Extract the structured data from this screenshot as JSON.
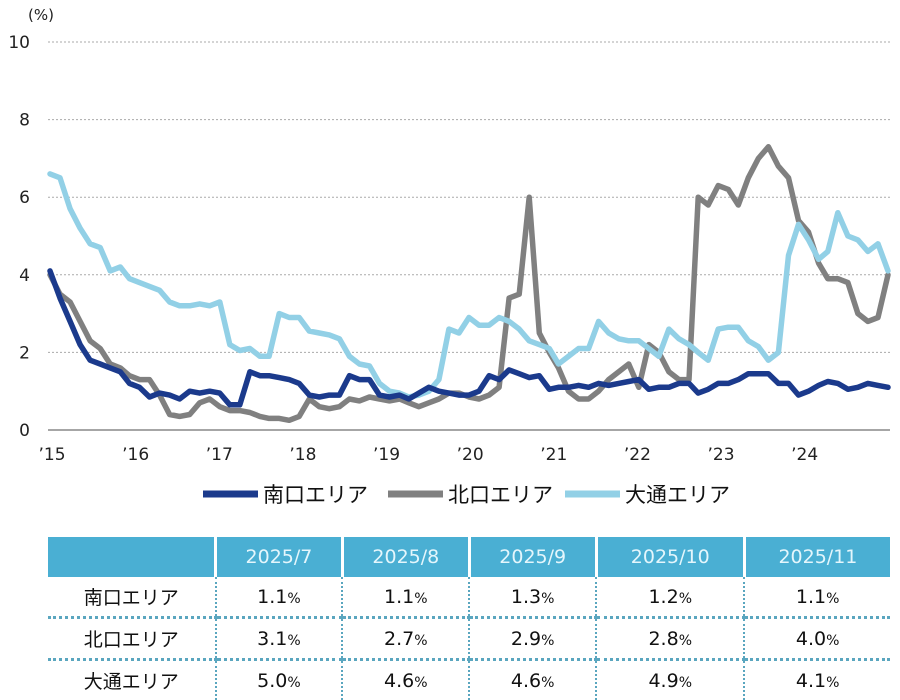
{
  "chart_data": {
    "type": "line",
    "ylabel": "(%)",
    "ylim": [
      0,
      10
    ],
    "yticks": [
      "0",
      "2",
      "4",
      "6",
      "8",
      "10"
    ],
    "grid": true,
    "legend_placement": "bottom",
    "xticks": [
      {
        "label": "’15",
        "x": 2015
      },
      {
        "label": "’16",
        "x": 2016
      },
      {
        "label": "’17",
        "x": 2017
      },
      {
        "label": "’18",
        "x": 2018
      },
      {
        "label": "’19",
        "x": 2019
      },
      {
        "label": "’20",
        "x": 2020
      },
      {
        "label": "’21",
        "x": 2021
      },
      {
        "label": "’22",
        "x": 2022
      },
      {
        "label": "’23",
        "x": 2023
      },
      {
        "label": "’24",
        "x": 2024
      }
    ],
    "x": [
      2015.0,
      2015.12,
      2015.24,
      2015.36,
      2015.48,
      2015.6,
      2015.72,
      2015.84,
      2015.95,
      2016.07,
      2016.19,
      2016.31,
      2016.43,
      2016.55,
      2016.67,
      2016.79,
      2016.91,
      2017.03,
      2017.15,
      2017.27,
      2017.39,
      2017.51,
      2017.62,
      2017.74,
      2017.86,
      2017.98,
      2018.1,
      2018.22,
      2018.34,
      2018.46,
      2018.58,
      2018.7,
      2018.82,
      2018.94,
      2019.06,
      2019.18,
      2019.29,
      2019.41,
      2019.53,
      2019.65,
      2019.77,
      2019.89,
      2020.01,
      2020.13,
      2020.25,
      2020.37,
      2020.49,
      2020.61,
      2020.73,
      2020.85,
      2020.97,
      2021.08,
      2021.2,
      2021.32,
      2021.44,
      2021.56,
      2021.68,
      2021.8,
      2021.92,
      2022.04,
      2022.16,
      2022.28,
      2022.4,
      2022.52,
      2022.64,
      2022.75,
      2022.87,
      2022.99,
      2023.11,
      2023.23,
      2023.35,
      2023.47,
      2023.59,
      2023.71,
      2023.83,
      2023.95,
      2024.07,
      2024.19,
      2024.3,
      2024.42,
      2024.54,
      2024.66,
      2024.78,
      2024.9,
      2025.02
    ],
    "series": [
      {
        "name": "南口エリア",
        "color": "#1b3a8c",
        "values": [
          4.1,
          3.4,
          2.8,
          2.2,
          1.8,
          1.7,
          1.6,
          1.5,
          1.2,
          1.1,
          0.85,
          0.95,
          0.9,
          0.8,
          1.0,
          0.95,
          1.0,
          0.95,
          0.65,
          0.65,
          1.5,
          1.4,
          1.4,
          1.35,
          1.3,
          1.2,
          0.9,
          0.85,
          0.9,
          0.9,
          1.4,
          1.3,
          1.3,
          0.9,
          0.85,
          0.9,
          0.8,
          0.95,
          1.1,
          1.0,
          0.95,
          0.9,
          0.9,
          1.0,
          1.4,
          1.3,
          1.55,
          1.45,
          1.35,
          1.4,
          1.05,
          1.1,
          1.1,
          1.15,
          1.1,
          1.2,
          1.15,
          1.2,
          1.25,
          1.3,
          1.05,
          1.1,
          1.1,
          1.2,
          1.2,
          0.95,
          1.05,
          1.2,
          1.2,
          1.3,
          1.45,
          1.45,
          1.45,
          1.2,
          1.2,
          0.9,
          1.0,
          1.15,
          1.25,
          1.2,
          1.05,
          1.1,
          1.2,
          1.15,
          1.1
        ]
      },
      {
        "name": "北口エリア",
        "color": "#808080",
        "values": [
          4.0,
          3.5,
          3.3,
          2.8,
          2.3,
          2.1,
          1.7,
          1.6,
          1.4,
          1.3,
          1.3,
          0.9,
          0.4,
          0.35,
          0.4,
          0.7,
          0.8,
          0.6,
          0.5,
          0.5,
          0.45,
          0.35,
          0.3,
          0.3,
          0.25,
          0.35,
          0.8,
          0.6,
          0.55,
          0.6,
          0.8,
          0.75,
          0.85,
          0.8,
          0.75,
          0.8,
          0.7,
          0.6,
          0.7,
          0.8,
          0.95,
          0.95,
          0.85,
          0.8,
          0.9,
          1.1,
          3.4,
          3.5,
          6.0,
          2.5,
          2.0,
          1.6,
          1.0,
          0.8,
          0.8,
          1.0,
          1.3,
          1.5,
          1.7,
          1.1,
          2.2,
          2.0,
          1.5,
          1.3,
          1.3,
          6.0,
          5.8,
          6.3,
          6.2,
          5.8,
          6.5,
          7.0,
          7.3,
          6.8,
          6.5,
          5.4,
          5.1,
          4.3,
          3.9,
          3.9,
          3.8,
          3.0,
          2.8,
          2.9,
          4.0
        ]
      },
      {
        "name": "大通エリア",
        "color": "#92d0e6",
        "values": [
          6.6,
          6.5,
          5.7,
          5.2,
          4.8,
          4.7,
          4.1,
          4.2,
          3.9,
          3.8,
          3.7,
          3.6,
          3.3,
          3.2,
          3.2,
          3.25,
          3.2,
          3.3,
          2.2,
          2.05,
          2.1,
          1.9,
          1.9,
          3.0,
          2.9,
          2.9,
          2.55,
          2.5,
          2.45,
          2.35,
          1.9,
          1.7,
          1.65,
          1.2,
          1.0,
          0.95,
          0.85,
          0.9,
          1.0,
          1.3,
          2.6,
          2.5,
          2.9,
          2.7,
          2.7,
          2.9,
          2.8,
          2.6,
          2.3,
          2.2,
          2.1,
          1.7,
          1.9,
          2.1,
          2.1,
          2.8,
          2.5,
          2.35,
          2.3,
          2.3,
          2.1,
          1.9,
          2.6,
          2.35,
          2.2,
          2.0,
          1.8,
          2.6,
          2.65,
          2.65,
          2.3,
          2.15,
          1.8,
          2.0,
          4.5,
          5.3,
          4.9,
          4.4,
          4.6,
          5.6,
          5.0,
          4.9,
          4.6,
          4.8,
          4.1
        ]
      }
    ]
  },
  "table": {
    "headers": [
      "",
      "2025/7",
      "2025/8",
      "2025/9",
      "2025/10",
      "2025/11"
    ],
    "unit": "%",
    "rows": [
      {
        "label": "南口エリア",
        "values": [
          "1.1",
          "1.1",
          "1.3",
          "1.2",
          "1.1"
        ]
      },
      {
        "label": "北口エリア",
        "values": [
          "3.1",
          "2.7",
          "2.9",
          "2.8",
          "4.0"
        ]
      },
      {
        "label": "大通エリア",
        "values": [
          "5.0",
          "4.6",
          "4.6",
          "4.9",
          "4.1"
        ]
      }
    ]
  }
}
